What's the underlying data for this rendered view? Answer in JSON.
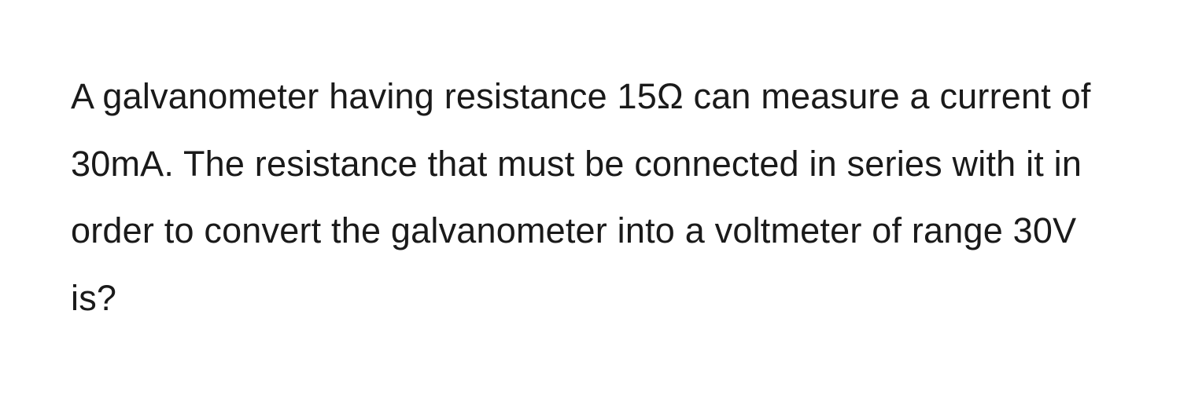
{
  "question": {
    "text": "A galvanometer having resistance 15Ω can measure a current of 30mA. The resistance that must be connected in series with it in order to convert the galvanometer into a voltmeter of range 30V is?",
    "font_size": 45,
    "line_height": 1.9,
    "text_color": "#1a1a1a",
    "background_color": "#ffffff",
    "font_weight": 400
  }
}
